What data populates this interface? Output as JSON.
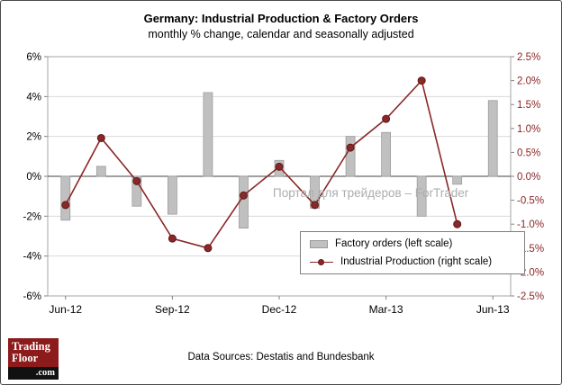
{
  "header": {
    "title": "Germany: Industrial Production & Factory Orders",
    "subtitle": "monthly % change, calendar and seasonally adjusted"
  },
  "chart_data": {
    "type": "bar",
    "subtype": "combo bar+line, dual axis",
    "categories": [
      "Jun-12",
      "Jul-12",
      "Aug-12",
      "Sep-12",
      "Oct-12",
      "Nov-12",
      "Dec-12",
      "Jan-13",
      "Feb-13",
      "Mar-13",
      "Apr-13",
      "May-13",
      "Jun-13"
    ],
    "x_tick_labels": [
      "Jun-12",
      "Sep-12",
      "Dec-12",
      "Mar-13",
      "Jun-13"
    ],
    "x_tick_positions": [
      0,
      3,
      6,
      9,
      12
    ],
    "series": [
      {
        "name": "Factory orders (left scale)",
        "type": "bar",
        "axis": "left",
        "color": "#c0c0c0",
        "values": [
          -2.2,
          0.5,
          -1.5,
          -1.9,
          4.2,
          -2.6,
          0.8,
          -1.6,
          2.0,
          2.2,
          -2.0,
          -0.4,
          3.8
        ]
      },
      {
        "name": "Industrial Production (right scale)",
        "type": "line",
        "axis": "right",
        "color": "#8b2727",
        "values": [
          -0.6,
          0.8,
          -0.1,
          -1.3,
          -1.5,
          -0.4,
          0.2,
          -0.6,
          0.6,
          1.2,
          2.0,
          -1.0,
          null
        ]
      }
    ],
    "left_axis": {
      "min": -6,
      "max": 6,
      "ticks": [
        "6%",
        "4%",
        "2%",
        "0%",
        "-2%",
        "-4%",
        "-6%"
      ]
    },
    "right_axis": {
      "min": -2.5,
      "max": 2.5,
      "ticks": [
        "2.5%",
        "2.0%",
        "1.5%",
        "1.0%",
        "0.5%",
        "0.0%",
        "-0.5%",
        "-1.0%",
        "-1.5%",
        "-2.0%",
        "-2.5%"
      ],
      "label_color": "#8b2727"
    },
    "grid": "horizontal, every 2% on left axis",
    "legend_position": "inside lower right"
  },
  "watermark": "Портал для трейдеров – ForTrader",
  "footer": {
    "data_sources": "Data Sources:  Destatis and Bundesbank"
  },
  "logo": {
    "line1": "Trading",
    "line2": "Floor",
    "suffix": ".com"
  }
}
